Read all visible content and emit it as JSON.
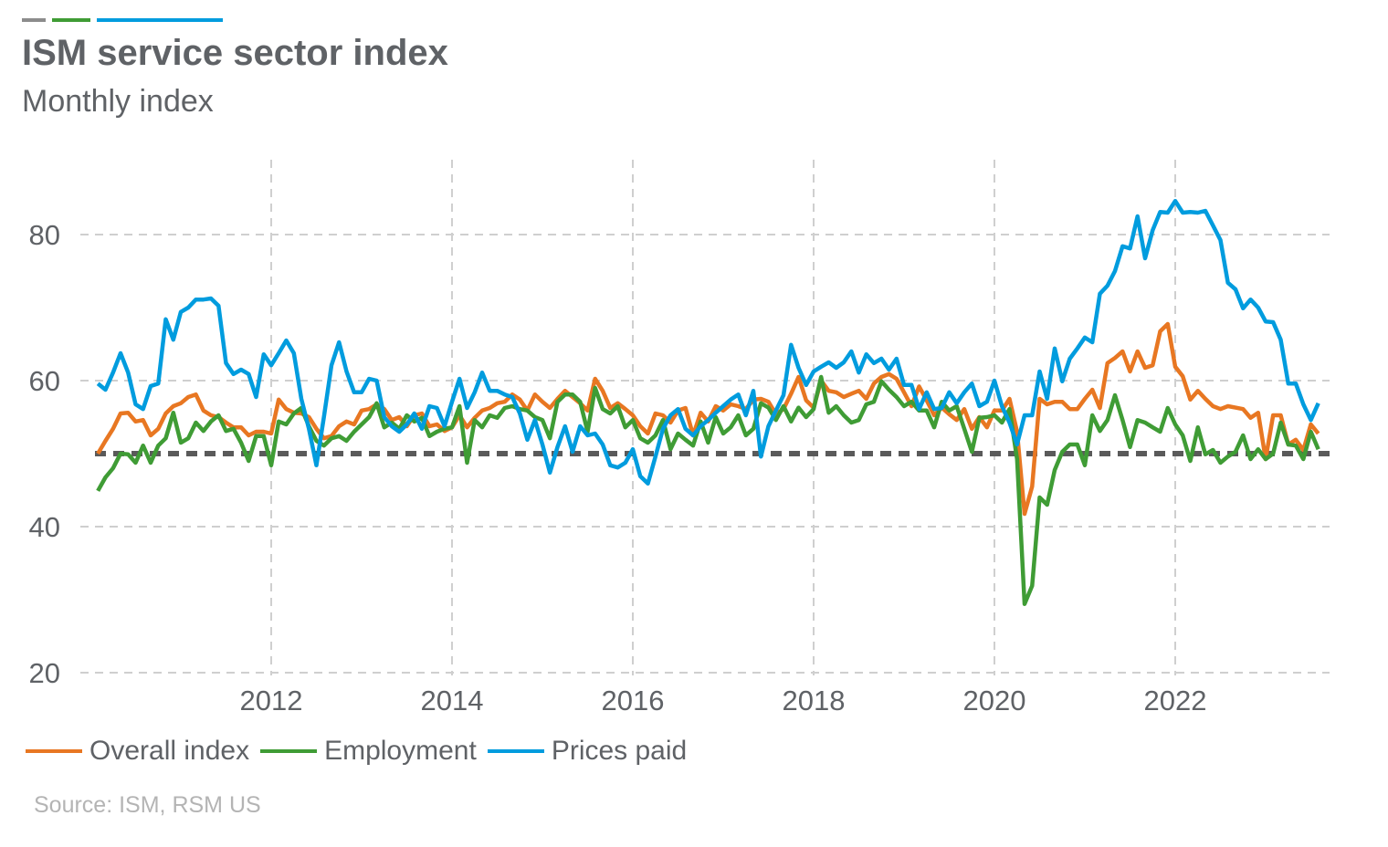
{
  "header": {
    "title": "ISM service sector index",
    "subtitle": "Monthly index",
    "accent_bars": [
      "#8c8c8c",
      "#3f9c35",
      "#009cde"
    ]
  },
  "source": "Source: ISM, RSM US",
  "chart_data": {
    "type": "line",
    "title": "ISM service sector index",
    "subtitle": "Monthly index",
    "xlabel": "",
    "ylabel": "",
    "x_start": "2010-01",
    "x_end": "2023-07",
    "frequency": "monthly",
    "xlim": [
      2010,
      2023.6
    ],
    "ylim": [
      20,
      90
    ],
    "x_ticks": [
      "2012",
      "2014",
      "2016",
      "2018",
      "2020",
      "2022"
    ],
    "y_ticks": [
      "20",
      "40",
      "60",
      "80"
    ],
    "grid": true,
    "reference_line": {
      "value": 50,
      "color": "#5a5a5a",
      "style": "dotted"
    },
    "legend_position": "bottom-left",
    "series": [
      {
        "name": "Overall index",
        "color": "#e87722",
        "values": [
          50,
          51.75,
          53.4,
          55.5,
          55.6,
          54.4,
          54.6,
          52.5,
          53.4,
          55.5,
          56.5,
          56.9,
          57.75,
          58.1,
          55.9,
          55.25,
          55,
          54.25,
          53.6,
          53.6,
          52.5,
          53,
          53,
          52.75,
          57.4,
          56.1,
          55.6,
          55.5,
          55,
          53.4,
          52.1,
          52.4,
          53.75,
          54.4,
          54,
          55.9,
          56.1,
          56.75,
          56.1,
          54.6,
          55,
          53.75,
          55.25,
          55.5,
          53.75,
          54,
          53.1,
          53.6,
          55.25,
          53.6,
          54.9,
          55.9,
          56.25,
          56.9,
          57.1,
          58.1,
          57.4,
          55.9,
          58.1,
          57.1,
          56.25,
          57.5,
          58.6,
          57.75,
          56.9,
          55.9,
          60.25,
          58.6,
          56.25,
          56.9,
          56.1,
          55.25,
          53.75,
          52.75,
          55.5,
          55.25,
          54.25,
          55.9,
          56.25,
          52.5,
          55.6,
          54.4,
          56.5,
          55.9,
          56.75,
          56.5,
          56.1,
          57.4,
          57.5,
          57.1,
          55.4,
          56.1,
          58.2,
          60.5,
          57.3,
          56.3,
          60,
          58.6,
          58.4,
          57.75,
          58.2,
          58.6,
          57.5,
          59.6,
          60.5,
          60.9,
          60.25,
          58.4,
          56.5,
          59.2,
          57.3,
          55.25,
          56.3,
          55.4,
          54.6,
          56.1,
          53.4,
          55,
          53.6,
          55.9,
          55.9,
          57.5,
          53,
          41.75,
          45.5,
          57.5,
          56.75,
          57.1,
          57.1,
          56.1,
          56.1,
          57.5,
          58.75,
          56.25,
          62.4,
          63.1,
          64,
          61.25,
          64,
          61.75,
          62.1,
          66.75,
          67.75,
          61.9,
          60.6,
          57.4,
          58.6,
          57.5,
          56.5,
          56.1,
          56.5,
          56.3,
          56.1,
          54.9,
          55.6,
          49.25,
          55.25,
          55.25,
          51.25,
          51.9,
          50.5,
          54,
          52.75
        ]
      },
      {
        "name": "Employment",
        "color": "#3f9c35",
        "values": [
          44.9,
          46.75,
          48,
          50,
          49.9,
          48.75,
          51.1,
          48.75,
          51.1,
          52.1,
          55.6,
          51.5,
          52.1,
          54.25,
          53.1,
          54.4,
          55.25,
          53.1,
          53.4,
          51.5,
          49,
          52.4,
          52.4,
          48.4,
          54.4,
          54,
          55.5,
          56.25,
          53.75,
          51.75,
          51.1,
          52.1,
          52.4,
          51.75,
          53,
          54,
          55,
          56.9,
          53.6,
          54.25,
          53.4,
          55.25,
          54.4,
          54.9,
          52.4,
          53,
          53.4,
          53.6,
          56.5,
          48.75,
          54.6,
          53.6,
          55.25,
          54.9,
          56.25,
          56.5,
          56.1,
          55.9,
          55,
          54.6,
          52.1,
          57.1,
          58.1,
          58.1,
          57.1,
          53,
          59,
          56.1,
          55.5,
          56.5,
          53.6,
          54.6,
          52.1,
          51.5,
          52.5,
          54.6,
          50.6,
          52.75,
          51.9,
          51.1,
          54.4,
          51.5,
          55,
          52.75,
          53.6,
          55.25,
          52.5,
          53.4,
          56.9,
          56.3,
          54.6,
          56.5,
          54.4,
          56.3,
          55,
          56.1,
          60.5,
          55.6,
          56.5,
          55.25,
          54.25,
          54.6,
          56.75,
          57.1,
          59.9,
          58.75,
          57.75,
          56.5,
          57.1,
          55.9,
          55.9,
          53.6,
          57.1,
          55.9,
          56.5,
          53.4,
          50.25,
          54.9,
          55,
          55.25,
          54.25,
          56.1,
          49.25,
          29.4,
          31.9,
          44,
          43,
          47.75,
          50.25,
          51.25,
          51.25,
          48.4,
          55.25,
          53.1,
          54.6,
          58,
          54.6,
          50.9,
          54.6,
          54.25,
          53.6,
          53,
          56.25,
          54,
          52.5,
          49,
          53.6,
          49.9,
          50.5,
          48.75,
          49.6,
          50.25,
          52.5,
          49.25,
          50.6,
          49.25,
          50,
          54.25,
          51.25,
          51.1,
          49.25,
          53,
          50.6
        ]
      },
      {
        "name": "Prices paid",
        "color": "#009cde",
        "values": [
          59.6,
          58.75,
          61.1,
          63.75,
          61.1,
          56.75,
          56.1,
          59.25,
          59.6,
          68.4,
          65.6,
          69.4,
          70,
          71.1,
          71.1,
          71.25,
          70.25,
          62.4,
          60.9,
          61.5,
          60.9,
          57.75,
          63.6,
          62.1,
          63.75,
          65.5,
          63.75,
          57.5,
          53.4,
          48.4,
          55,
          62.1,
          65.25,
          61.25,
          58.4,
          58.4,
          60.25,
          60,
          55,
          53.75,
          53,
          54,
          55.5,
          53.4,
          56.5,
          56.25,
          53.75,
          57.1,
          60.25,
          56.25,
          58.4,
          61.1,
          58.6,
          58.6,
          58.1,
          57.75,
          55.5,
          51.9,
          54.6,
          51.25,
          47.4,
          50.9,
          53.75,
          50.25,
          53.75,
          52.5,
          52.75,
          51.25,
          48.4,
          48.1,
          48.75,
          50.6,
          46.9,
          45.9,
          49.6,
          53.4,
          55.25,
          56.1,
          53.4,
          52.5,
          53.75,
          54.6,
          55.6,
          56.5,
          57.4,
          58.1,
          55.25,
          58.6,
          49.6,
          53.75,
          55.9,
          58,
          64.9,
          61.75,
          59.4,
          61.25,
          61.9,
          62.5,
          61.75,
          62.5,
          64,
          61.1,
          63.6,
          62.4,
          63,
          61.5,
          63,
          59.4,
          59.4,
          56.1,
          58.4,
          56.1,
          56.25,
          58.4,
          56.9,
          58.4,
          59.6,
          56.5,
          57.1,
          60,
          56.5,
          54.25,
          51.25,
          55.25,
          55.25,
          61.25,
          57.5,
          64.4,
          59.9,
          63,
          64.4,
          65.9,
          65.25,
          71.9,
          73,
          75,
          78.4,
          78.1,
          82.5,
          76.75,
          80.6,
          83.1,
          83,
          84.6,
          83,
          83.1,
          83,
          83.25,
          81.25,
          79.25,
          73.4,
          72.5,
          69.9,
          71.1,
          70,
          68.1,
          68,
          65.6,
          59.6,
          59.6,
          56.75,
          54.6,
          56.9
        ]
      }
    ]
  }
}
